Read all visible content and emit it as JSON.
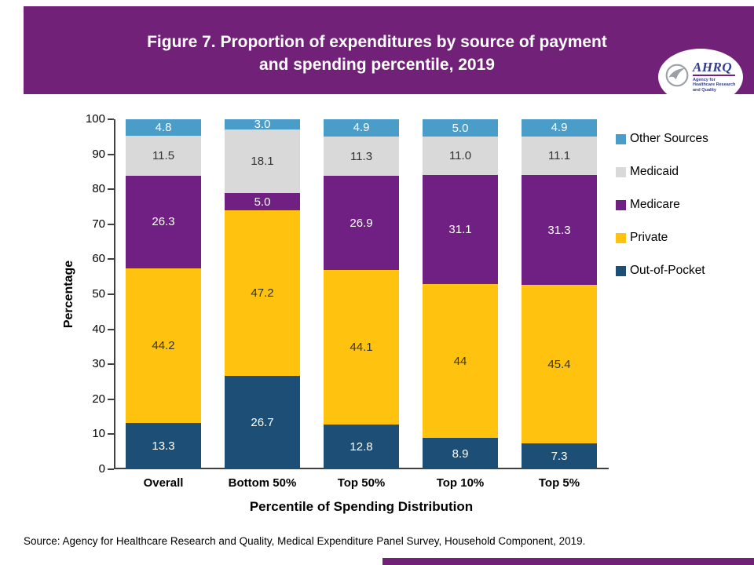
{
  "header": {
    "title_line1": "Figure 7. Proportion of expenditures by source of payment",
    "title_line2": "and spending percentile, 2019",
    "background_color": "#712177"
  },
  "logo": {
    "acronym": "AHRQ",
    "subtitle": "Agency for Healthcare Research and Quality"
  },
  "chart_data": {
    "type": "bar",
    "stacked": true,
    "title": "Figure 7. Proportion of expenditures by source of payment and spending percentile, 2019",
    "categories": [
      "Overall",
      "Bottom 50%",
      "Top 50%",
      "Top 10%",
      "Top 5%"
    ],
    "series": [
      {
        "name": "Out-of-Pocket",
        "color": "#1d4f76",
        "label_color": "#ffffff",
        "values": [
          13.3,
          26.7,
          12.8,
          8.9,
          7.3
        ],
        "labels": [
          "13.3",
          "26.7",
          "12.8",
          "8.9",
          "7.3"
        ]
      },
      {
        "name": "Private",
        "color": "#ffc20e",
        "label_color": "#333333",
        "values": [
          44.2,
          47.2,
          44.1,
          44,
          45.4
        ],
        "labels": [
          "44.2",
          "47.2",
          "44.1",
          "44",
          "45.4"
        ]
      },
      {
        "name": "Medicare",
        "color": "#702082",
        "label_color": "#ffffff",
        "values": [
          26.3,
          5.0,
          26.9,
          31.1,
          31.3
        ],
        "labels": [
          "26.3",
          "5.0",
          "26.9",
          "31.1",
          "31.3"
        ]
      },
      {
        "name": "Medicaid",
        "color": "#d9d9d9",
        "label_color": "#333333",
        "values": [
          11.5,
          18.1,
          11.3,
          11.0,
          11.1
        ],
        "labels": [
          "11.5",
          "18.1",
          "11.3",
          "11.0",
          "11.1"
        ]
      },
      {
        "name": "Other Sources",
        "color": "#4a9dc9",
        "label_color": "#ffffff",
        "values": [
          4.8,
          3.0,
          4.9,
          5.0,
          4.9
        ],
        "labels": [
          "4.8",
          "3.0",
          "4.9",
          "5.0",
          "4.9"
        ]
      }
    ],
    "xlabel": "Percentile of Spending Distribution",
    "ylabel": "Percentage",
    "ylim": [
      0,
      100
    ],
    "ytick_step": 10,
    "grid": false,
    "legend_position": "right",
    "legend_order": [
      "Other Sources",
      "Medicaid",
      "Medicare",
      "Private",
      "Out-of-Pocket"
    ]
  },
  "footer": {
    "source": "Source: Agency for Healthcare Research and Quality, Medical Expenditure Panel Survey, Household Component, 2019."
  }
}
